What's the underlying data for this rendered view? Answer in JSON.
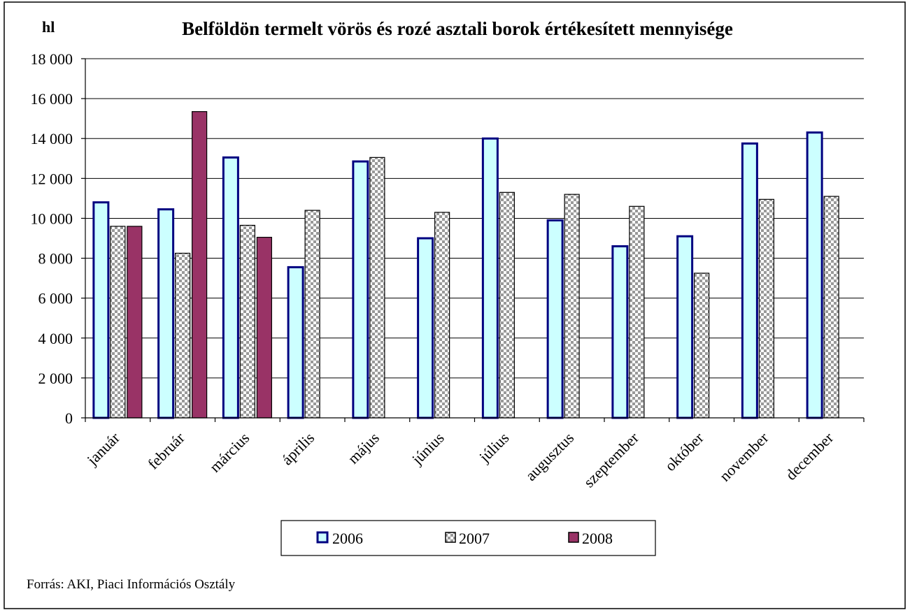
{
  "chart_data": {
    "type": "bar",
    "title": "Belföldön termelt vörös és rozé asztali borok értékesített mennyisége",
    "unit_label": "hl",
    "categories": [
      "január",
      "február",
      "március",
      "április",
      "május",
      "június",
      "július",
      "augusztus",
      "szeptember",
      "október",
      "november",
      "december"
    ],
    "series": [
      {
        "name": "2006",
        "values": [
          10800,
          10450,
          13050,
          7550,
          12850,
          9000,
          14000,
          9900,
          8600,
          9100,
          13750,
          14300
        ]
      },
      {
        "name": "2007",
        "values": [
          9600,
          8250,
          9650,
          10400,
          13050,
          10300,
          11300,
          11200,
          10600,
          7250,
          10950,
          11100
        ]
      },
      {
        "name": "2008",
        "values": [
          9600,
          15350,
          9050,
          null,
          null,
          null,
          null,
          null,
          null,
          null,
          null,
          null
        ]
      }
    ],
    "y_ticks": [
      "0",
      "2 000",
      "4 000",
      "6 000",
      "8 000",
      "10 000",
      "12 000",
      "14 000",
      "16 000",
      "18 000"
    ],
    "ylim": [
      0,
      18000
    ],
    "grid": true,
    "legend_position": "bottom",
    "source": "Forrás: AKI, Piaci Információs Osztály",
    "colors": {
      "s2006_fill": "#ccffff",
      "s2006_stroke": "#000080",
      "s2007_light": "#ffffff",
      "s2007_dark": "#999999",
      "s2008_fill": "#993366",
      "grid": "#000000"
    }
  }
}
